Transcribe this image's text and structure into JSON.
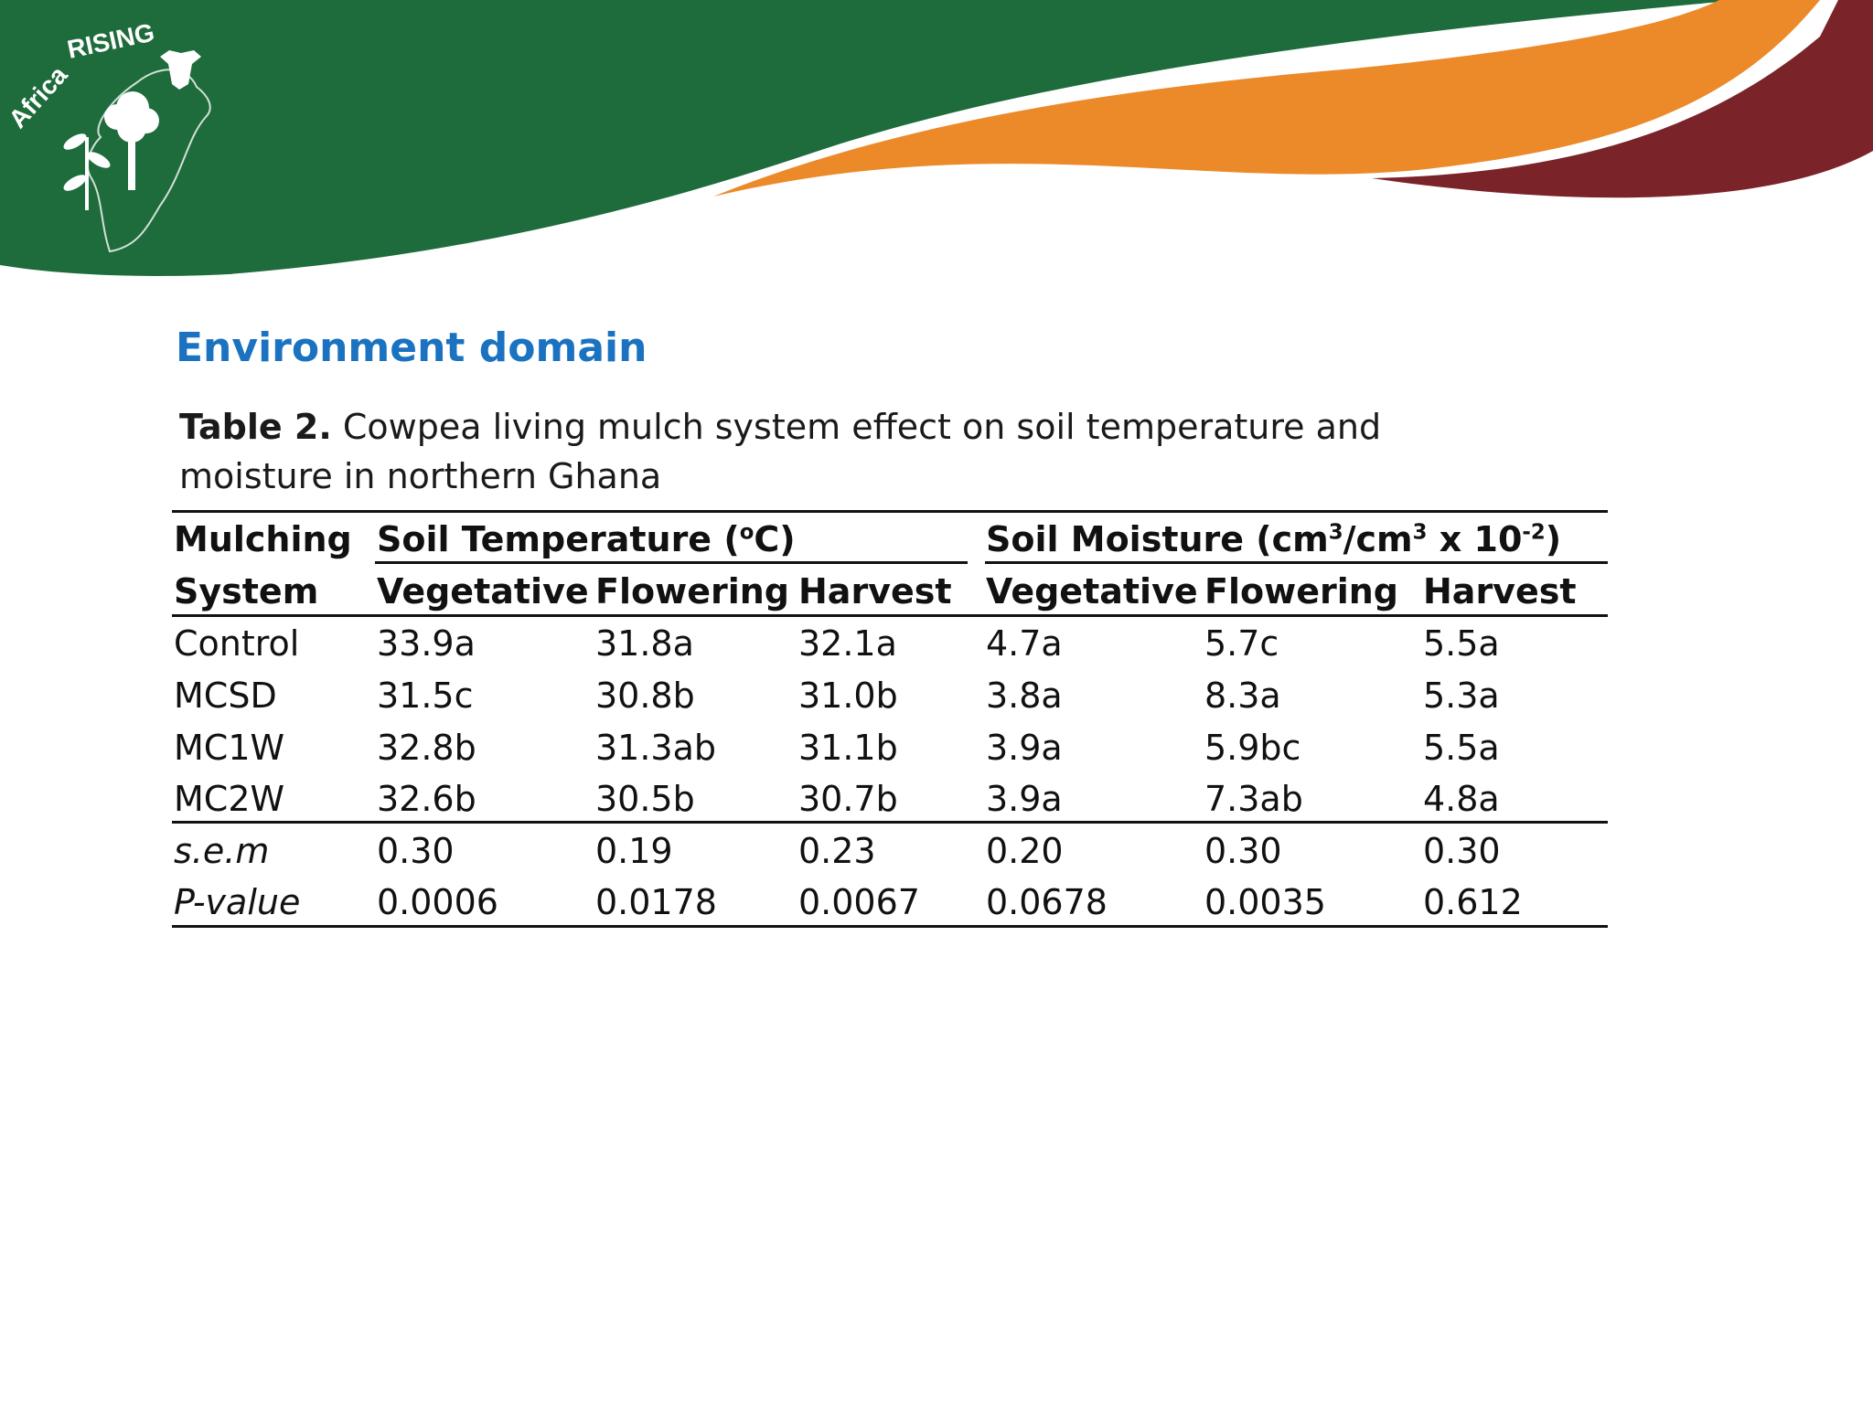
{
  "brand": {
    "logo_text": "Africa RISING",
    "colors": {
      "green": "#1e6b3c",
      "orange": "#ec8a2a",
      "maroon": "#7a2329",
      "title_blue": "#1a72c0"
    }
  },
  "section_title": "Environment domain",
  "caption": {
    "label": "Table 2.",
    "text": " Cowpea living mulch system effect on soil temperature and moisture in northern Ghana"
  },
  "table": {
    "row_header_top": "Mulching",
    "row_header_bottom": "System",
    "group_temp": {
      "text": "Soil Temperature (",
      "sup": "o",
      "tail": "C)"
    },
    "group_moist": {
      "text": "Soil Moisture (cm",
      "sup1": "3",
      "mid": "/cm",
      "sup2": "3",
      "mid2": " x 10",
      "sup3": "-2",
      "tail": ")"
    },
    "subheaders": [
      "Vegetative",
      "Flowering",
      "Harvest",
      "Vegetative",
      "Flowering",
      "Harvest"
    ],
    "rows": [
      {
        "label": "Control",
        "values": [
          "33.9a",
          "31.8a",
          "32.1a",
          "4.7a",
          "5.7c",
          "5.5a"
        ]
      },
      {
        "label": "MCSD",
        "values": [
          "31.5c",
          "30.8b",
          "31.0b",
          "3.8a",
          "8.3a",
          "5.3a"
        ]
      },
      {
        "label": "MC1W",
        "values": [
          "32.8b",
          "31.3ab",
          "31.1b",
          "3.9a",
          "5.9bc",
          "5.5a"
        ]
      },
      {
        "label": "MC2W",
        "values": [
          "32.6b",
          "30.5b",
          "30.7b",
          "3.9a",
          "7.3ab",
          "4.8a"
        ]
      }
    ],
    "stats": [
      {
        "label": "s.e.m",
        "values": [
          "0.30",
          "0.19",
          "0.23",
          "0.20",
          "0.30",
          "0.30"
        ]
      },
      {
        "label": "P-value",
        "values": [
          "0.0006",
          "0.0178",
          "0.0067",
          "0.0678",
          "0.0035",
          "0.612"
        ]
      }
    ]
  }
}
